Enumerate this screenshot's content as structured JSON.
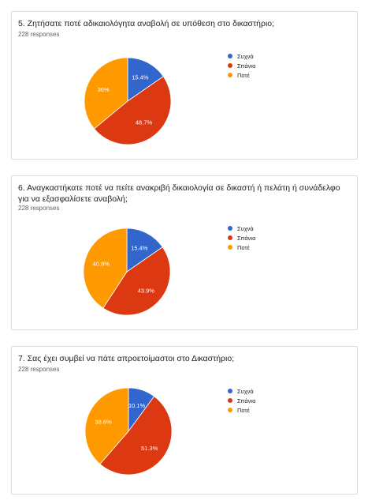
{
  "colors": {
    "series0": "#3366cc",
    "series1": "#dc3912",
    "series2": "#ff9900"
  },
  "chart_data": [
    {
      "type": "pie",
      "title": "5. Ζητήσατε ποτέ αδικαιολόγητα αναβολή σε υπόθεση στο δικαστήριο;",
      "subtitle": "228 responses",
      "categories": [
        "Συχνά",
        "Σπάνια",
        "Ποτέ"
      ],
      "values": [
        15.4,
        48.7,
        36
      ],
      "labels": [
        "15.4%",
        "48.7%",
        "36%"
      ],
      "legend_position": "right"
    },
    {
      "type": "pie",
      "title": "6. Αναγκαστήκατε ποτέ να πείτε ανακριβή δικαιολογία σε δικαστή ή πελάτη ή συνάδελφο για να εξασφαλίσετε αναβολή;",
      "subtitle": "228 responses",
      "categories": [
        "Συχνά",
        "Σπάνια",
        "Ποτέ"
      ],
      "values": [
        15.4,
        43.9,
        40.8
      ],
      "labels": [
        "15.4%",
        "43.9%",
        "40.8%"
      ],
      "legend_position": "right"
    },
    {
      "type": "pie",
      "title": "7. Σας έχει συμβεί να πάτε απροετοίμαστοι στο Δικαστήριο;",
      "subtitle": "228 responses",
      "categories": [
        "Συχνά",
        "Σπάνια",
        "Ποτέ"
      ],
      "values": [
        10.1,
        51.3,
        38.6
      ],
      "labels": [
        "10.1%",
        "51.3%",
        "38.6%"
      ],
      "legend_position": "right"
    }
  ]
}
